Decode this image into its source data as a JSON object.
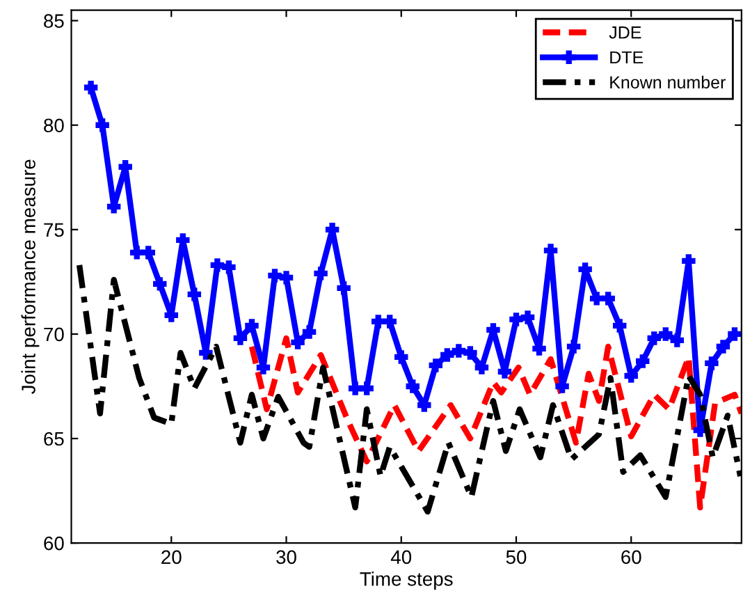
{
  "chart_data": {
    "type": "line",
    "xlabel": "Time steps",
    "ylabel": "Joint performance measure",
    "xlim": [
      11.3,
      69.6
    ],
    "ylim": [
      60,
      85.5
    ],
    "xticks": [
      20,
      30,
      40,
      50,
      60
    ],
    "yticks": [
      60,
      65,
      70,
      75,
      80,
      85
    ],
    "grid": false,
    "legend": "top right",
    "series": [
      {
        "name": "JDE",
        "color": "#ff0000",
        "line_style": "dashed",
        "marker": "none",
        "x": [
          27,
          28.3,
          30,
          31,
          33,
          35.4,
          37,
          39.4,
          41.5,
          44.3,
          46,
          48,
          48.7,
          50.2,
          51.2,
          53,
          55.2,
          56.3,
          57.2,
          58,
          60,
          62,
          63.3,
          65,
          66,
          67.3,
          69,
          69.6
        ],
        "values": [
          69.4,
          66.4,
          69.8,
          67.2,
          69.0,
          65.8,
          63.9,
          66.6,
          64.4,
          66.6,
          65.0,
          67.7,
          67.2,
          68.4,
          67.1,
          68.8,
          64.8,
          68.1,
          66.8,
          69.4,
          65.1,
          67.1,
          66.4,
          68.9,
          61.7,
          66.7,
          67.1,
          66.2
        ]
      },
      {
        "name": "DTE",
        "color": "#0000ff",
        "line_style": "solid",
        "marker": "cross",
        "x": [
          13,
          14,
          15,
          16,
          17,
          18,
          19,
          20,
          21,
          22,
          23,
          24,
          25,
          26,
          27,
          28,
          29,
          30,
          31,
          32,
          33,
          34,
          35,
          36,
          37,
          38,
          39,
          40,
          41,
          42,
          43,
          44,
          45,
          46,
          47,
          48,
          49,
          50,
          51,
          52,
          53,
          54,
          55,
          56,
          57,
          58,
          59,
          60,
          61,
          62,
          63,
          64,
          65,
          66,
          67,
          68,
          69
        ],
        "values": [
          81.8,
          80.0,
          76.1,
          78.0,
          73.9,
          73.9,
          72.4,
          70.9,
          74.5,
          71.9,
          69.1,
          73.3,
          73.2,
          69.8,
          70.4,
          68.4,
          72.8,
          72.7,
          69.6,
          70.1,
          72.9,
          75.0,
          72.2,
          67.4,
          67.4,
          70.6,
          70.6,
          68.9,
          67.5,
          66.6,
          68.5,
          69.0,
          69.2,
          69.1,
          68.4,
          70.2,
          68.2,
          70.7,
          70.8,
          69.3,
          74.0,
          67.5,
          69.4,
          73.1,
          71.7,
          71.7,
          70.4,
          68.0,
          68.7,
          69.8,
          70.0,
          69.7,
          73.5,
          65.4,
          68.6,
          69.4,
          70.0
        ]
      },
      {
        "name": "Known number",
        "color": "#000000",
        "line_style": "dashdot",
        "marker": "none",
        "x": [
          12,
          13.8,
          15,
          17.2,
          18.5,
          20,
          20.8,
          22,
          23.9,
          26,
          27,
          28,
          29.3,
          31.5,
          32,
          33.2,
          36,
          37,
          38.2,
          39,
          42.3,
          44.1,
          46.1,
          48,
          49.1,
          50.3,
          52.1,
          53.2,
          54.8,
          57.2,
          58.2,
          59.3,
          60.8,
          63,
          65,
          66,
          67.1,
          68.4,
          69.5
        ],
        "values": [
          73.3,
          66.2,
          72.6,
          67.9,
          66.0,
          65.7,
          69.1,
          67.4,
          69.4,
          64.8,
          67.1,
          65.0,
          67.0,
          64.8,
          64.6,
          68.4,
          61.7,
          66.4,
          63.2,
          64.6,
          61.5,
          64.8,
          62.2,
          66.8,
          64.4,
          66.4,
          64.1,
          66.6,
          64.0,
          65.2,
          67.9,
          63.4,
          64.2,
          62.2,
          68.0,
          67.1,
          64.1,
          66.1,
          63.2
        ]
      }
    ]
  }
}
